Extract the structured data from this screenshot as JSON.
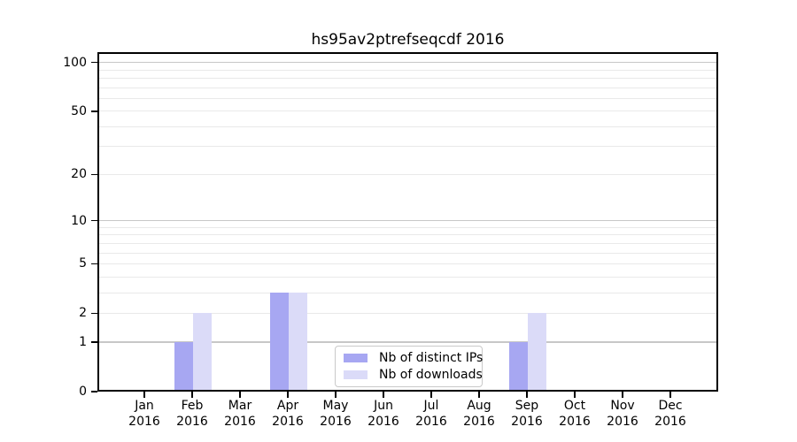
{
  "title": "hs95av2ptrefseqcdf 2016",
  "chart_data": {
    "type": "bar",
    "title": "hs95av2ptrefseqcdf 2016",
    "categories": [
      "Jan 2016",
      "Feb 2016",
      "Mar 2016",
      "Apr 2016",
      "May 2016",
      "Jun 2016",
      "Jul 2016",
      "Aug 2016",
      "Sep 2016",
      "Oct 2016",
      "Nov 2016",
      "Dec 2016"
    ],
    "series": [
      {
        "name": "Nb of distinct IPs",
        "color": "#a7a7f2",
        "values": [
          0,
          1,
          0,
          3,
          0,
          0,
          0,
          0,
          1,
          0,
          0,
          0
        ]
      },
      {
        "name": "Nb of downloads",
        "color": "#dbdbf8",
        "values": [
          0,
          2,
          0,
          3,
          0,
          0,
          0,
          0,
          2,
          0,
          0,
          0
        ]
      }
    ],
    "xlabel": "",
    "ylabel": "",
    "y_scale": "log10(1+y)",
    "y_ticks": [
      0,
      1,
      2,
      5,
      10,
      20,
      50,
      100
    ],
    "ylim": [
      0,
      115
    ],
    "grid": {
      "orientation": "horizontal",
      "major_values": [
        1,
        10,
        100
      ],
      "minor_values": [
        2,
        3,
        4,
        5,
        6,
        7,
        8,
        9,
        20,
        30,
        40,
        50,
        60,
        70,
        80,
        90
      ],
      "major_color": "#c7c7c7",
      "minor_color": "#e9e9e9"
    },
    "legend": {
      "position": "lower center",
      "entries": [
        "Nb of distinct IPs",
        "Nb of downloads"
      ]
    },
    "colors": {
      "spine": "#000000",
      "text": "#000000",
      "background": "#ffffff"
    }
  }
}
